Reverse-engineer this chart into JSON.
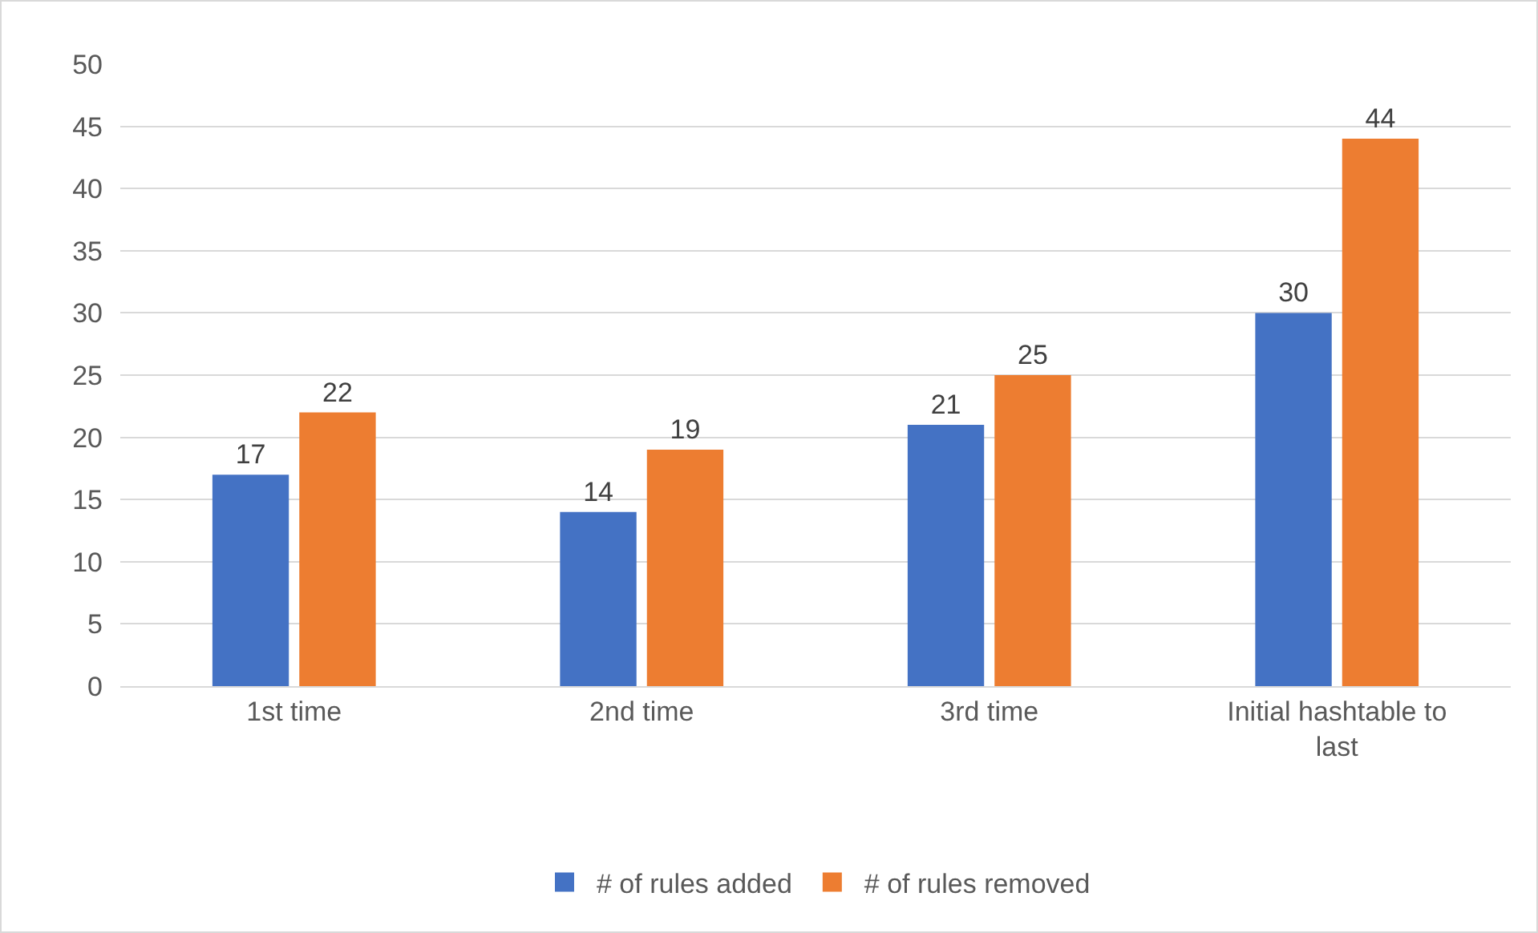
{
  "chart_data": {
    "type": "bar",
    "categories": [
      "1st time",
      "2nd time",
      "3rd time",
      "Initial hashtable to last"
    ],
    "series": [
      {
        "name": "# of rules added",
        "color": "#4472c4",
        "values": [
          17,
          14,
          21,
          30
        ]
      },
      {
        "name": "# of rules removed",
        "color": "#ed7d31",
        "values": [
          22,
          19,
          25,
          44
        ]
      }
    ],
    "ylim": [
      0,
      50
    ],
    "yticks": [
      0,
      5,
      10,
      15,
      20,
      25,
      30,
      35,
      40,
      45,
      50
    ],
    "grid": "y",
    "legend": "bottom",
    "data_labels": true
  }
}
